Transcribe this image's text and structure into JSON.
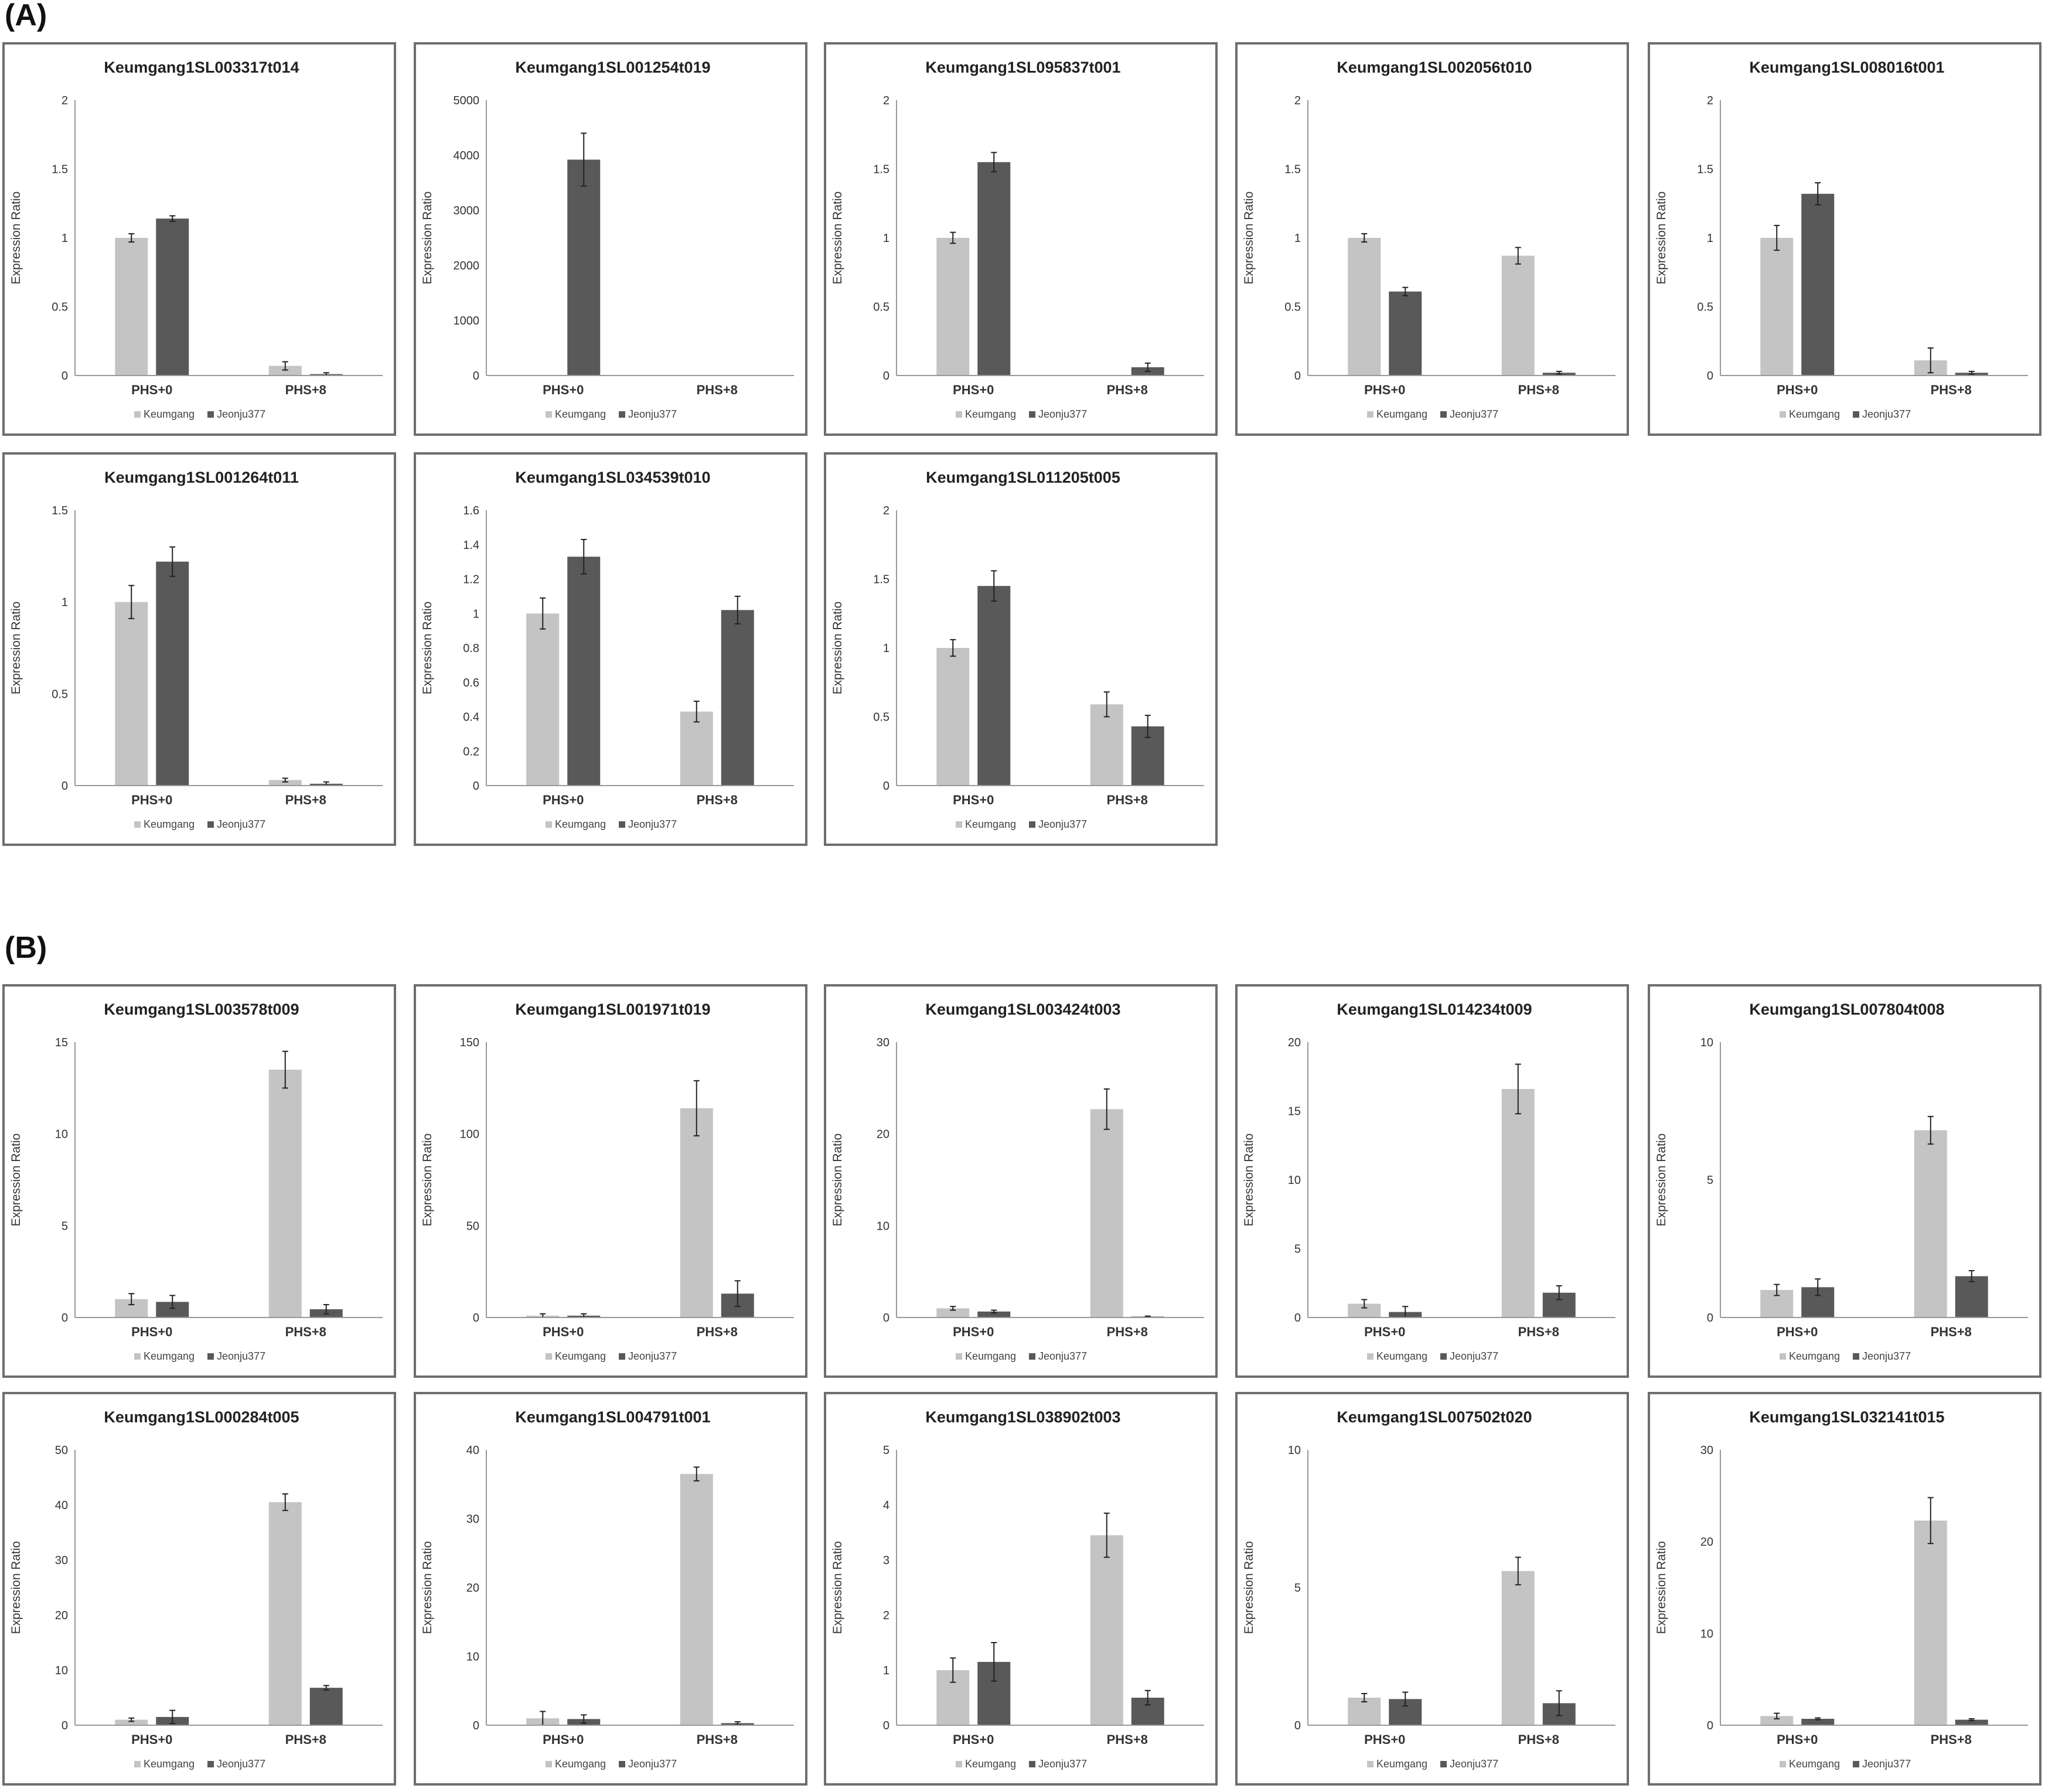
{
  "sections": [
    "(A)",
    "(B)"
  ],
  "colors": {
    "keumgang": "#c4c4c4",
    "jeonju": "#595959",
    "axis": "#999999",
    "error_bar": "#222222"
  },
  "chart_data": [
    {
      "type": "bar",
      "section": "(A)",
      "title": "Keumgang1SL003317t014",
      "ylabel": "Expression Ratio",
      "ylim": [
        0,
        2
      ],
      "yticks": [
        "0",
        "0.5",
        "1",
        "1.5",
        "2"
      ],
      "categories": [
        "PHS+0",
        "PHS+8"
      ],
      "series": [
        {
          "name": "Keumgang",
          "values": [
            1.0,
            0.07
          ],
          "errors": [
            0.03,
            0.03
          ]
        },
        {
          "name": "Jeonju377",
          "values": [
            1.14,
            0.01
          ],
          "errors": [
            0.02,
            0.01
          ]
        }
      ]
    },
    {
      "type": "bar",
      "section": "(A)",
      "title": "Keumgang1SL001254t019",
      "ylabel": "Expression Ratio",
      "ylim": [
        0,
        5000
      ],
      "yticks": [
        "0",
        "1000",
        "2000",
        "3000",
        "4000",
        "5000"
      ],
      "categories": [
        "PHS+0",
        "PHS+8"
      ],
      "series": [
        {
          "name": "Keumgang",
          "values": [
            1,
            0
          ],
          "errors": [
            0,
            0
          ]
        },
        {
          "name": "Jeonju377",
          "values": [
            3920,
            0
          ],
          "errors": [
            480,
            0
          ]
        }
      ]
    },
    {
      "type": "bar",
      "section": "(A)",
      "title": "Keumgang1SL095837t001",
      "ylabel": "Expression Ratio",
      "ylim": [
        0,
        2
      ],
      "yticks": [
        "0",
        "0.5",
        "1",
        "1.5",
        "2"
      ],
      "categories": [
        "PHS+0",
        "PHS+8"
      ],
      "series": [
        {
          "name": "Keumgang",
          "values": [
            1.0,
            0
          ],
          "errors": [
            0.04,
            0
          ]
        },
        {
          "name": "Jeonju377",
          "values": [
            1.55,
            0.06
          ],
          "errors": [
            0.07,
            0.03
          ]
        }
      ]
    },
    {
      "type": "bar",
      "section": "(A)",
      "title": "Keumgang1SL002056t010",
      "ylabel": "Expression Ratio",
      "ylim": [
        0,
        2
      ],
      "yticks": [
        "0",
        "0.5",
        "1",
        "1.5",
        "2"
      ],
      "categories": [
        "PHS+0",
        "PHS+8"
      ],
      "series": [
        {
          "name": "Keumgang",
          "values": [
            1.0,
            0.87
          ],
          "errors": [
            0.03,
            0.06
          ]
        },
        {
          "name": "Jeonju377",
          "values": [
            0.61,
            0.02
          ],
          "errors": [
            0.03,
            0.01
          ]
        }
      ]
    },
    {
      "type": "bar",
      "section": "(A)",
      "title": "Keumgang1SL008016t001",
      "ylabel": "Expression Ratio",
      "ylim": [
        0,
        2
      ],
      "yticks": [
        "0",
        "0.5",
        "1",
        "1.5",
        "2"
      ],
      "categories": [
        "PHS+0",
        "PHS+8"
      ],
      "series": [
        {
          "name": "Keumgang",
          "values": [
            1.0,
            0.11
          ],
          "errors": [
            0.09,
            0.09
          ]
        },
        {
          "name": "Jeonju377",
          "values": [
            1.32,
            0.02
          ],
          "errors": [
            0.08,
            0.01
          ]
        }
      ]
    },
    {
      "type": "bar",
      "section": "(A)",
      "title": "Keumgang1SL001264t011",
      "ylabel": "Expression Ratio",
      "ylim": [
        0,
        1.5
      ],
      "yticks": [
        "0",
        "0.5",
        "1",
        "1.5"
      ],
      "categories": [
        "PHS+0",
        "PHS+8"
      ],
      "series": [
        {
          "name": "Keumgang",
          "values": [
            1.0,
            0.03
          ],
          "errors": [
            0.09,
            0.01
          ]
        },
        {
          "name": "Jeonju377",
          "values": [
            1.22,
            0.01
          ],
          "errors": [
            0.08,
            0.01
          ]
        }
      ]
    },
    {
      "type": "bar",
      "section": "(A)",
      "title": "Keumgang1SL034539t010",
      "ylabel": "Expression Ratio",
      "ylim": [
        0,
        1.6
      ],
      "yticks": [
        "0",
        "0.2",
        "0.4",
        "0.6",
        "0.8",
        "1",
        "1.2",
        "1.4",
        "1.6"
      ],
      "categories": [
        "PHS+0",
        "PHS+8"
      ],
      "series": [
        {
          "name": "Keumgang",
          "values": [
            1.0,
            0.43
          ],
          "errors": [
            0.09,
            0.06
          ]
        },
        {
          "name": "Jeonju377",
          "values": [
            1.33,
            1.02
          ],
          "errors": [
            0.1,
            0.08
          ]
        }
      ]
    },
    {
      "type": "bar",
      "section": "(A)",
      "title": "Keumgang1SL011205t005",
      "ylabel": "Expression Ratio",
      "ylim": [
        0,
        2
      ],
      "yticks": [
        "0",
        "0.5",
        "1",
        "1.5",
        "2"
      ],
      "categories": [
        "PHS+0",
        "PHS+8"
      ],
      "series": [
        {
          "name": "Keumgang",
          "values": [
            1.0,
            0.59
          ],
          "errors": [
            0.06,
            0.09
          ]
        },
        {
          "name": "Jeonju377",
          "values": [
            1.45,
            0.43
          ],
          "errors": [
            0.11,
            0.08
          ]
        }
      ]
    },
    {
      "type": "bar",
      "section": "(B)",
      "title": "Keumgang1SL003578t009",
      "ylabel": "Expression Ratio",
      "ylim": [
        0,
        15
      ],
      "yticks": [
        "0",
        "5",
        "10",
        "15"
      ],
      "categories": [
        "PHS+0",
        "PHS+8"
      ],
      "series": [
        {
          "name": "Keumgang",
          "values": [
            1.0,
            13.5
          ],
          "errors": [
            0.3,
            1.0
          ]
        },
        {
          "name": "Jeonju377",
          "values": [
            0.85,
            0.45
          ],
          "errors": [
            0.35,
            0.25
          ]
        }
      ]
    },
    {
      "type": "bar",
      "section": "(B)",
      "title": "Keumgang1SL001971t019",
      "ylabel": "Expression Ratio",
      "ylim": [
        0,
        150
      ],
      "yticks": [
        "0",
        "50",
        "100",
        "150"
      ],
      "categories": [
        "PHS+0",
        "PHS+8"
      ],
      "series": [
        {
          "name": "Keumgang",
          "values": [
            1,
            114
          ],
          "errors": [
            1,
            15
          ]
        },
        {
          "name": "Jeonju377",
          "values": [
            1,
            13
          ],
          "errors": [
            1,
            7
          ]
        }
      ]
    },
    {
      "type": "bar",
      "section": "(B)",
      "title": "Keumgang1SL003424t003",
      "ylabel": "Expression Ratio",
      "ylim": [
        0,
        30
      ],
      "yticks": [
        "0",
        "10",
        "20",
        "30"
      ],
      "categories": [
        "PHS+0",
        "PHS+8"
      ],
      "series": [
        {
          "name": "Keumgang",
          "values": [
            1.0,
            22.7
          ],
          "errors": [
            0.2,
            2.2
          ]
        },
        {
          "name": "Jeonju377",
          "values": [
            0.65,
            0.1
          ],
          "errors": [
            0.15,
            0.05
          ]
        }
      ]
    },
    {
      "type": "bar",
      "section": "(B)",
      "title": "Keumgang1SL014234t009",
      "ylabel": "Expression Ratio",
      "ylim": [
        0,
        20
      ],
      "yticks": [
        "0",
        "5",
        "10",
        "15",
        "20"
      ],
      "categories": [
        "PHS+0",
        "PHS+8"
      ],
      "series": [
        {
          "name": "Keumgang",
          "values": [
            1.0,
            16.6
          ],
          "errors": [
            0.3,
            1.8
          ]
        },
        {
          "name": "Jeonju377",
          "values": [
            0.4,
            1.8
          ],
          "errors": [
            0.4,
            0.5
          ]
        }
      ]
    },
    {
      "type": "bar",
      "section": "(B)",
      "title": "Keumgang1SL007804t008",
      "ylabel": "Expression Ratio",
      "ylim": [
        0,
        10
      ],
      "yticks": [
        "0",
        "5",
        "10"
      ],
      "categories": [
        "PHS+0",
        "PHS+8"
      ],
      "series": [
        {
          "name": "Keumgang",
          "values": [
            1.0,
            6.8
          ],
          "errors": [
            0.2,
            0.5
          ]
        },
        {
          "name": "Jeonju377",
          "values": [
            1.1,
            1.5
          ],
          "errors": [
            0.3,
            0.2
          ]
        }
      ]
    },
    {
      "type": "bar",
      "section": "(B)",
      "title": "Keumgang1SL000284t005",
      "ylabel": "Expression Ratio",
      "ylim": [
        0,
        50
      ],
      "yticks": [
        "0",
        "10",
        "20",
        "30",
        "40",
        "50"
      ],
      "categories": [
        "PHS+0",
        "PHS+8"
      ],
      "series": [
        {
          "name": "Keumgang",
          "values": [
            1.0,
            40.5
          ],
          "errors": [
            0.3,
            1.5
          ]
        },
        {
          "name": "Jeonju377",
          "values": [
            1.5,
            6.8
          ],
          "errors": [
            1.2,
            0.4
          ]
        }
      ]
    },
    {
      "type": "bar",
      "section": "(B)",
      "title": "Keumgang1SL004791t001",
      "ylabel": "Expression Ratio",
      "ylim": [
        0,
        40
      ],
      "yticks": [
        "0",
        "10",
        "20",
        "30",
        "40"
      ],
      "categories": [
        "PHS+0",
        "PHS+8"
      ],
      "series": [
        {
          "name": "Keumgang",
          "values": [
            1.0,
            36.5
          ],
          "errors": [
            1.0,
            1.0
          ]
        },
        {
          "name": "Jeonju377",
          "values": [
            0.9,
            0.3
          ],
          "errors": [
            0.6,
            0.2
          ]
        }
      ]
    },
    {
      "type": "bar",
      "section": "(B)",
      "title": "Keumgang1SL038902t003",
      "ylabel": "Expression Ratio",
      "ylim": [
        0,
        5
      ],
      "yticks": [
        "0",
        "1",
        "2",
        "3",
        "4",
        "5"
      ],
      "categories": [
        "PHS+0",
        "PHS+8"
      ],
      "series": [
        {
          "name": "Keumgang",
          "values": [
            1.0,
            3.45
          ],
          "errors": [
            0.22,
            0.4
          ]
        },
        {
          "name": "Jeonju377",
          "values": [
            1.15,
            0.5
          ],
          "errors": [
            0.35,
            0.13
          ]
        }
      ]
    },
    {
      "type": "bar",
      "section": "(B)",
      "title": "Keumgang1SL007502t020",
      "ylabel": "Expression Ratio",
      "ylim": [
        0,
        10
      ],
      "yticks": [
        "0",
        "5",
        "10"
      ],
      "categories": [
        "PHS+0",
        "PHS+8"
      ],
      "series": [
        {
          "name": "Keumgang",
          "values": [
            1.0,
            5.6
          ],
          "errors": [
            0.15,
            0.5
          ]
        },
        {
          "name": "Jeonju377",
          "values": [
            0.95,
            0.8
          ],
          "errors": [
            0.25,
            0.45
          ]
        }
      ]
    },
    {
      "type": "bar",
      "section": "(B)",
      "title": "Keumgang1SL032141t015",
      "ylabel": "Expression Ratio",
      "ylim": [
        0,
        30
      ],
      "yticks": [
        "0",
        "10",
        "20",
        "30"
      ],
      "categories": [
        "PHS+0",
        "PHS+8"
      ],
      "series": [
        {
          "name": "Keumgang",
          "values": [
            1.0,
            22.3
          ],
          "errors": [
            0.3,
            2.5
          ]
        },
        {
          "name": "Jeonju377",
          "values": [
            0.7,
            0.6
          ],
          "errors": [
            0.1,
            0.1
          ]
        }
      ]
    }
  ]
}
